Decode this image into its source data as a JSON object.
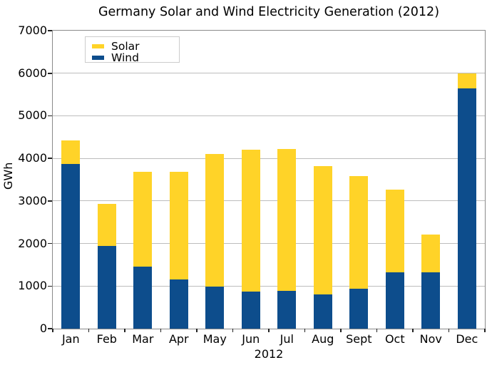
{
  "page": {
    "background": "#ffffff"
  },
  "chart_data": {
    "type": "bar",
    "stacked": true,
    "title": "Germany Solar and Wind Electricity Generation (2012)",
    "xlabel": "2012",
    "ylabel": "GWh",
    "categories": [
      "Jan",
      "Feb",
      "Mar",
      "Apr",
      "May",
      "Jun",
      "Jul",
      "Aug",
      "Sept",
      "Oct",
      "Nov",
      "Dec"
    ],
    "series": [
      {
        "name": "Solar",
        "color": "#FFD328",
        "values": [
          560,
          990,
          2230,
          2540,
          3120,
          3320,
          3330,
          3020,
          2640,
          1940,
          890,
          360
        ]
      },
      {
        "name": "Wind",
        "color": "#0D4D8C",
        "values": [
          3870,
          1950,
          1460,
          1150,
          990,
          880,
          890,
          800,
          940,
          1320,
          1330,
          5640
        ]
      }
    ],
    "stack_bottom_to_top": [
      "Wind",
      "Solar"
    ],
    "totals": [
      4430,
      2940,
      3690,
      3690,
      4110,
      4200,
      4220,
      3820,
      3580,
      3260,
      2220,
      6000
    ],
    "ylim": [
      0,
      7000
    ],
    "ytick_step": 1000,
    "grid": true,
    "legend": {
      "position": "upper-left",
      "entries": [
        "Solar",
        "Wind"
      ]
    },
    "colors": {
      "grid": "#bdbdbd",
      "frame": "#8a8a8a",
      "tick": "#222222",
      "text": "#000000",
      "legend_border": "#cccccc"
    }
  }
}
